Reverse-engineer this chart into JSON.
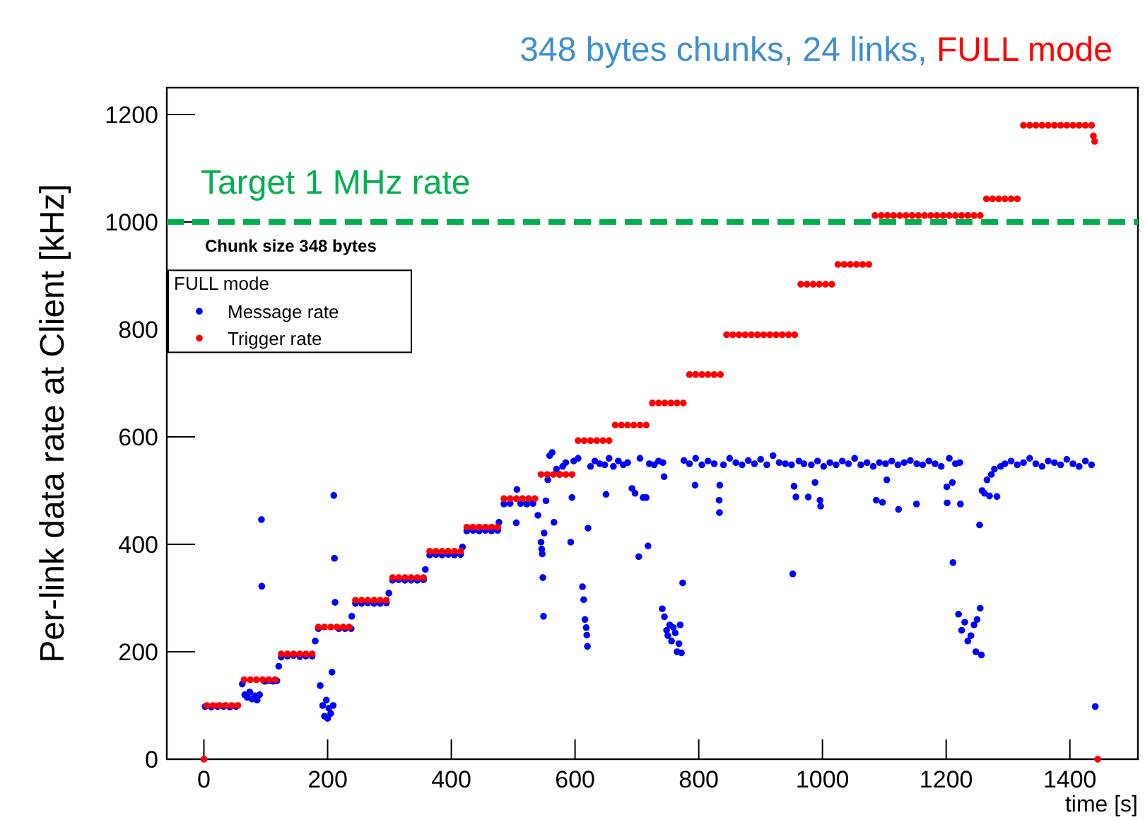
{
  "chart_data": {
    "type": "scatter",
    "title": "348 bytes chunks, 24 links, FULL mode",
    "xlabel": "time [s]",
    "ylabel": "Per-link data rate at Client [kHz]",
    "legend_title": "FULL mode",
    "legend": "top left",
    "marker": "circle",
    "grid": false,
    "xlim": [
      -60,
      1510
    ],
    "xticks": [
      0,
      200,
      400,
      600,
      800,
      1000,
      1200,
      1400
    ],
    "ylim": [
      0,
      1250
    ],
    "yticks": [
      0,
      200,
      400,
      600,
      800,
      1000,
      1200
    ],
    "ref_lines": [
      {
        "axis": "y",
        "value": 1000,
        "label": "Target 1 MHz rate",
        "color": "#00b050",
        "line_style": "dashed"
      }
    ],
    "annotations": [
      "Chunk size 348 bytes"
    ],
    "series": [
      {
        "name": "Message rate",
        "color": "#0000ff",
        "x": [
          2,
          12,
          22,
          32,
          42,
          52,
          62,
          66,
          70,
          74,
          78,
          82,
          86,
          90,
          93,
          93.5,
          98,
          105,
          112,
          118,
          121,
          125,
          135,
          145,
          155,
          165,
          175,
          180,
          185,
          188,
          192,
          195,
          198,
          200,
          202,
          205,
          207,
          209,
          210,
          211,
          212,
          218,
          228,
          238,
          239,
          245,
          255,
          265,
          275,
          285,
          295,
          299,
          305,
          315,
          325,
          335,
          345,
          355,
          358,
          365,
          375,
          385,
          395,
          405,
          415,
          418,
          425,
          435,
          445,
          455,
          465,
          475,
          477,
          485,
          495,
          505,
          506,
          512,
          522,
          532,
          540,
          545,
          546,
          547,
          548,
          549,
          550,
          553,
          556,
          559,
          563,
          566,
          570,
          575,
          580,
          585,
          593,
          595,
          598,
          605,
          612,
          614,
          616,
          618,
          619,
          620,
          621,
          625,
          632,
          640,
          648,
          650,
          655,
          662,
          670,
          678,
          685,
          692,
          697,
          703,
          705,
          710,
          715,
          718,
          720,
          728,
          735,
          742,
          744,
          741,
          744.5,
          748,
          750,
          753,
          756,
          759,
          762,
          765,
          768,
          770,
          772,
          774,
          776,
          785,
          794,
          795,
          805,
          815,
          825,
          833,
          833.5,
          834,
          840,
          850,
          860,
          870,
          880,
          890,
          900,
          910,
          920,
          930,
          940,
          950,
          952,
          954,
          957,
          962,
          970,
          977,
          982,
          988,
          992,
          996,
          997,
          1002,
          1012,
          1022,
          1032,
          1042,
          1052,
          1062,
          1072,
          1082,
          1087,
          1092,
          1097,
          1102,
          1104,
          1112,
          1122,
          1123,
          1132,
          1142,
          1152,
          1152.5,
          1162,
          1172,
          1182,
          1192,
          1201,
          1201.5,
          1205,
          1210,
          1211,
          1215,
          1222,
          1223,
          1220,
          1225,
          1230,
          1235,
          1240,
          1245,
          1248,
          1250,
          1254,
          1255,
          1257,
          1258,
          1262,
          1266,
          1270,
          1273,
          1278,
          1282,
          1288,
          1295,
          1305,
          1315,
          1325,
          1335,
          1345,
          1355,
          1365,
          1375,
          1385,
          1395,
          1405,
          1415,
          1425,
          1435,
          1441
        ],
        "values": [
          98,
          97,
          98,
          98,
          97,
          98,
          140,
          120,
          115,
          125,
          112,
          118,
          110,
          120,
          446,
          322,
          145,
          146,
          145,
          146,
          173,
          190,
          192,
          193,
          191,
          192,
          192,
          220,
          243,
          137,
          100,
          80,
          110,
          76,
          95,
          85,
          162,
          100,
          491,
          374,
          292,
          243,
          243,
          243,
          266,
          290,
          290,
          291,
          290,
          290,
          291,
          309,
          333,
          334,
          333,
          333,
          333,
          334,
          353,
          380,
          381,
          380,
          381,
          380,
          381,
          395,
          425,
          426,
          425,
          426,
          425,
          426,
          441,
          475,
          476,
          440,
          502,
          476,
          475,
          476,
          454,
          404,
          391,
          382,
          338,
          266,
          421,
          481,
          520,
          565,
          571,
          441,
          540,
          530,
          545,
          552,
          404,
          487,
          555,
          560,
          321,
          297,
          260,
          245,
          231,
          210,
          430,
          545,
          555,
          550,
          548,
          493,
          560,
          545,
          555,
          548,
          552,
          504,
          495,
          377,
          560,
          487,
          487,
          397,
          550,
          548,
          555,
          552,
          526,
          280,
          265,
          240,
          230,
          250,
          220,
          245,
          235,
          200,
          215,
          250,
          198,
          328,
          556,
          550,
          510,
          560,
          548,
          555,
          550,
          482,
          459,
          510,
          548,
          560,
          552,
          548,
          556,
          550,
          558,
          548,
          565,
          552,
          550,
          548,
          345,
          508,
          488,
          555,
          550,
          488,
          548,
          515,
          555,
          482,
          471,
          545,
          552,
          548,
          555,
          550,
          560,
          548,
          552,
          545,
          482,
          552,
          478,
          550,
          520,
          555,
          548,
          465,
          552,
          556,
          475,
          550,
          548,
          555,
          550,
          545,
          507,
          477,
          560,
          515,
          366,
          550,
          552,
          475,
          270,
          240,
          255,
          220,
          230,
          250,
          200,
          260,
          436,
          281,
          194,
          500,
          495,
          520,
          490,
          530,
          540,
          489,
          545,
          550,
          555,
          548,
          552,
          560,
          550,
          545,
          555,
          552,
          548,
          558,
          550,
          545,
          555,
          548,
          98
        ]
      },
      {
        "name": "Trigger rate",
        "color": "#ff0000",
        "x": [
          0,
          5,
          15,
          25,
          35,
          45,
          55,
          65,
          75,
          85,
          95,
          105,
          115,
          125,
          135,
          145,
          155,
          165,
          175,
          185,
          195,
          205,
          215,
          225,
          235,
          245,
          255,
          265,
          275,
          285,
          295,
          305,
          315,
          325,
          335,
          345,
          355,
          365,
          375,
          385,
          395,
          405,
          415,
          425,
          435,
          445,
          455,
          465,
          475,
          485,
          495,
          505,
          515,
          525,
          535,
          545,
          555,
          565,
          575,
          585,
          595,
          605,
          615,
          625,
          635,
          645,
          655,
          665,
          675,
          685,
          695,
          705,
          715,
          725,
          735,
          745,
          755,
          765,
          775,
          785,
          795,
          805,
          815,
          825,
          835,
          845,
          855,
          865,
          875,
          885,
          895,
          905,
          915,
          925,
          935,
          945,
          955,
          965,
          975,
          985,
          995,
          1005,
          1015,
          1025,
          1035,
          1045,
          1055,
          1065,
          1075,
          1085,
          1095,
          1105,
          1115,
          1125,
          1135,
          1145,
          1155,
          1165,
          1175,
          1185,
          1195,
          1205,
          1215,
          1225,
          1235,
          1245,
          1255,
          1265,
          1275,
          1285,
          1295,
          1305,
          1315,
          1325,
          1335,
          1345,
          1355,
          1365,
          1375,
          1385,
          1395,
          1405,
          1415,
          1425,
          1435,
          1438,
          1440,
          1445
        ],
        "values": [
          0,
          100,
          100,
          100,
          100,
          100,
          100,
          148,
          148,
          148,
          148,
          148,
          148,
          196,
          196,
          196,
          196,
          196,
          196,
          246,
          246,
          246,
          246,
          246,
          246,
          296,
          296,
          296,
          296,
          296,
          296,
          338,
          338,
          338,
          338,
          338,
          338,
          387,
          387,
          387,
          387,
          387,
          387,
          432,
          432,
          432,
          432,
          432,
          432,
          485,
          485,
          485,
          485,
          485,
          485,
          530,
          530,
          530,
          530,
          530,
          530,
          593,
          593,
          593,
          593,
          593,
          593,
          622,
          622,
          622,
          622,
          622,
          622,
          663,
          663,
          663,
          663,
          663,
          663,
          716,
          716,
          716,
          716,
          716,
          716,
          790,
          790,
          790,
          790,
          790,
          790,
          790,
          790,
          790,
          790,
          790,
          790,
          884,
          884,
          884,
          884,
          884,
          884,
          921,
          921,
          921,
          921,
          921,
          921,
          1012,
          1012,
          1012,
          1012,
          1012,
          1012,
          1012,
          1012,
          1012,
          1012,
          1012,
          1012,
          1012,
          1012,
          1012,
          1012,
          1012,
          1012,
          1043,
          1043,
          1043,
          1043,
          1043,
          1043,
          1180,
          1180,
          1180,
          1180,
          1180,
          1180,
          1180,
          1180,
          1180,
          1180,
          1180,
          1180,
          1160,
          1150,
          0
        ]
      }
    ]
  }
}
